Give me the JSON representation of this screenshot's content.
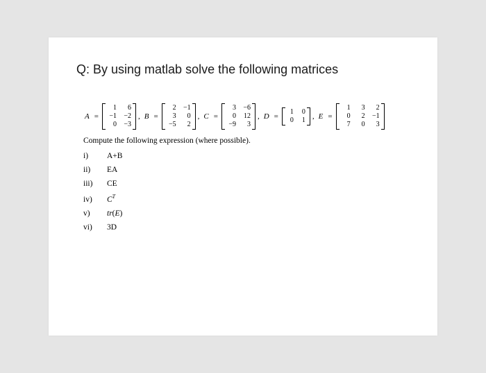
{
  "question": "Q: By using matlab solve the following matrices",
  "matrices": {
    "A": {
      "label": "A",
      "rows": [
        [
          "1",
          "6"
        ],
        [
          "−1",
          "−2"
        ],
        [
          "0",
          "−3"
        ]
      ]
    },
    "B": {
      "label": "B",
      "rows": [
        [
          "2",
          "−1"
        ],
        [
          "3",
          "0"
        ],
        [
          "−5",
          "2"
        ]
      ]
    },
    "C": {
      "label": "C",
      "rows": [
        [
          "3",
          "−6"
        ],
        [
          "0",
          "12"
        ],
        [
          "−9",
          "3"
        ]
      ]
    },
    "D": {
      "label": "D",
      "rows": [
        [
          "1",
          "0"
        ],
        [
          "0",
          "1"
        ]
      ]
    },
    "E": {
      "label": "E",
      "rows": [
        [
          "1",
          "3",
          "2"
        ],
        [
          "0",
          "2",
          "−1"
        ],
        [
          "7",
          "0",
          "3"
        ]
      ]
    }
  },
  "instruction": "Compute the following expression (where possible).",
  "parts": {
    "i": {
      "roman": "i)",
      "expr": "A+B"
    },
    "ii": {
      "roman": "ii)",
      "expr": "EA"
    },
    "iii": {
      "roman": "iii)",
      "expr": "CE"
    },
    "iv": {
      "roman": "iv)",
      "base": "C",
      "sup": "T"
    },
    "v": {
      "roman": "v)",
      "fn": "tr",
      "arg": "E"
    },
    "vi": {
      "roman": "vi)",
      "expr": "3D"
    }
  },
  "eq": "="
}
